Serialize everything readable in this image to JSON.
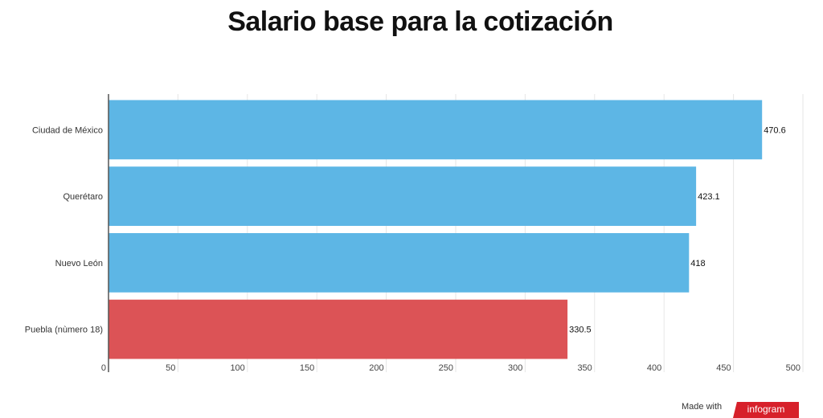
{
  "chart_data": {
    "type": "bar",
    "orientation": "horizontal",
    "title": "Salario base para la cotización",
    "categories": [
      "Ciudad de México",
      "Querétaro",
      "Nuevo León",
      "Puebla (nùmero 18)"
    ],
    "values": [
      470.6,
      423.1,
      418,
      330.5
    ],
    "data_labels": [
      "470.6",
      "423.1",
      "418",
      "330.5"
    ],
    "colors": [
      "#5db6e5",
      "#5db6e5",
      "#5db6e5",
      "#dc5356"
    ],
    "xlim": [
      0,
      500
    ],
    "xticks": [
      0,
      50,
      100,
      150,
      200,
      250,
      300,
      350,
      400,
      450,
      500
    ],
    "grid": true,
    "xlabel": "",
    "ylabel": ""
  },
  "footer": {
    "made_with": "Made with",
    "brand": "infogram"
  }
}
